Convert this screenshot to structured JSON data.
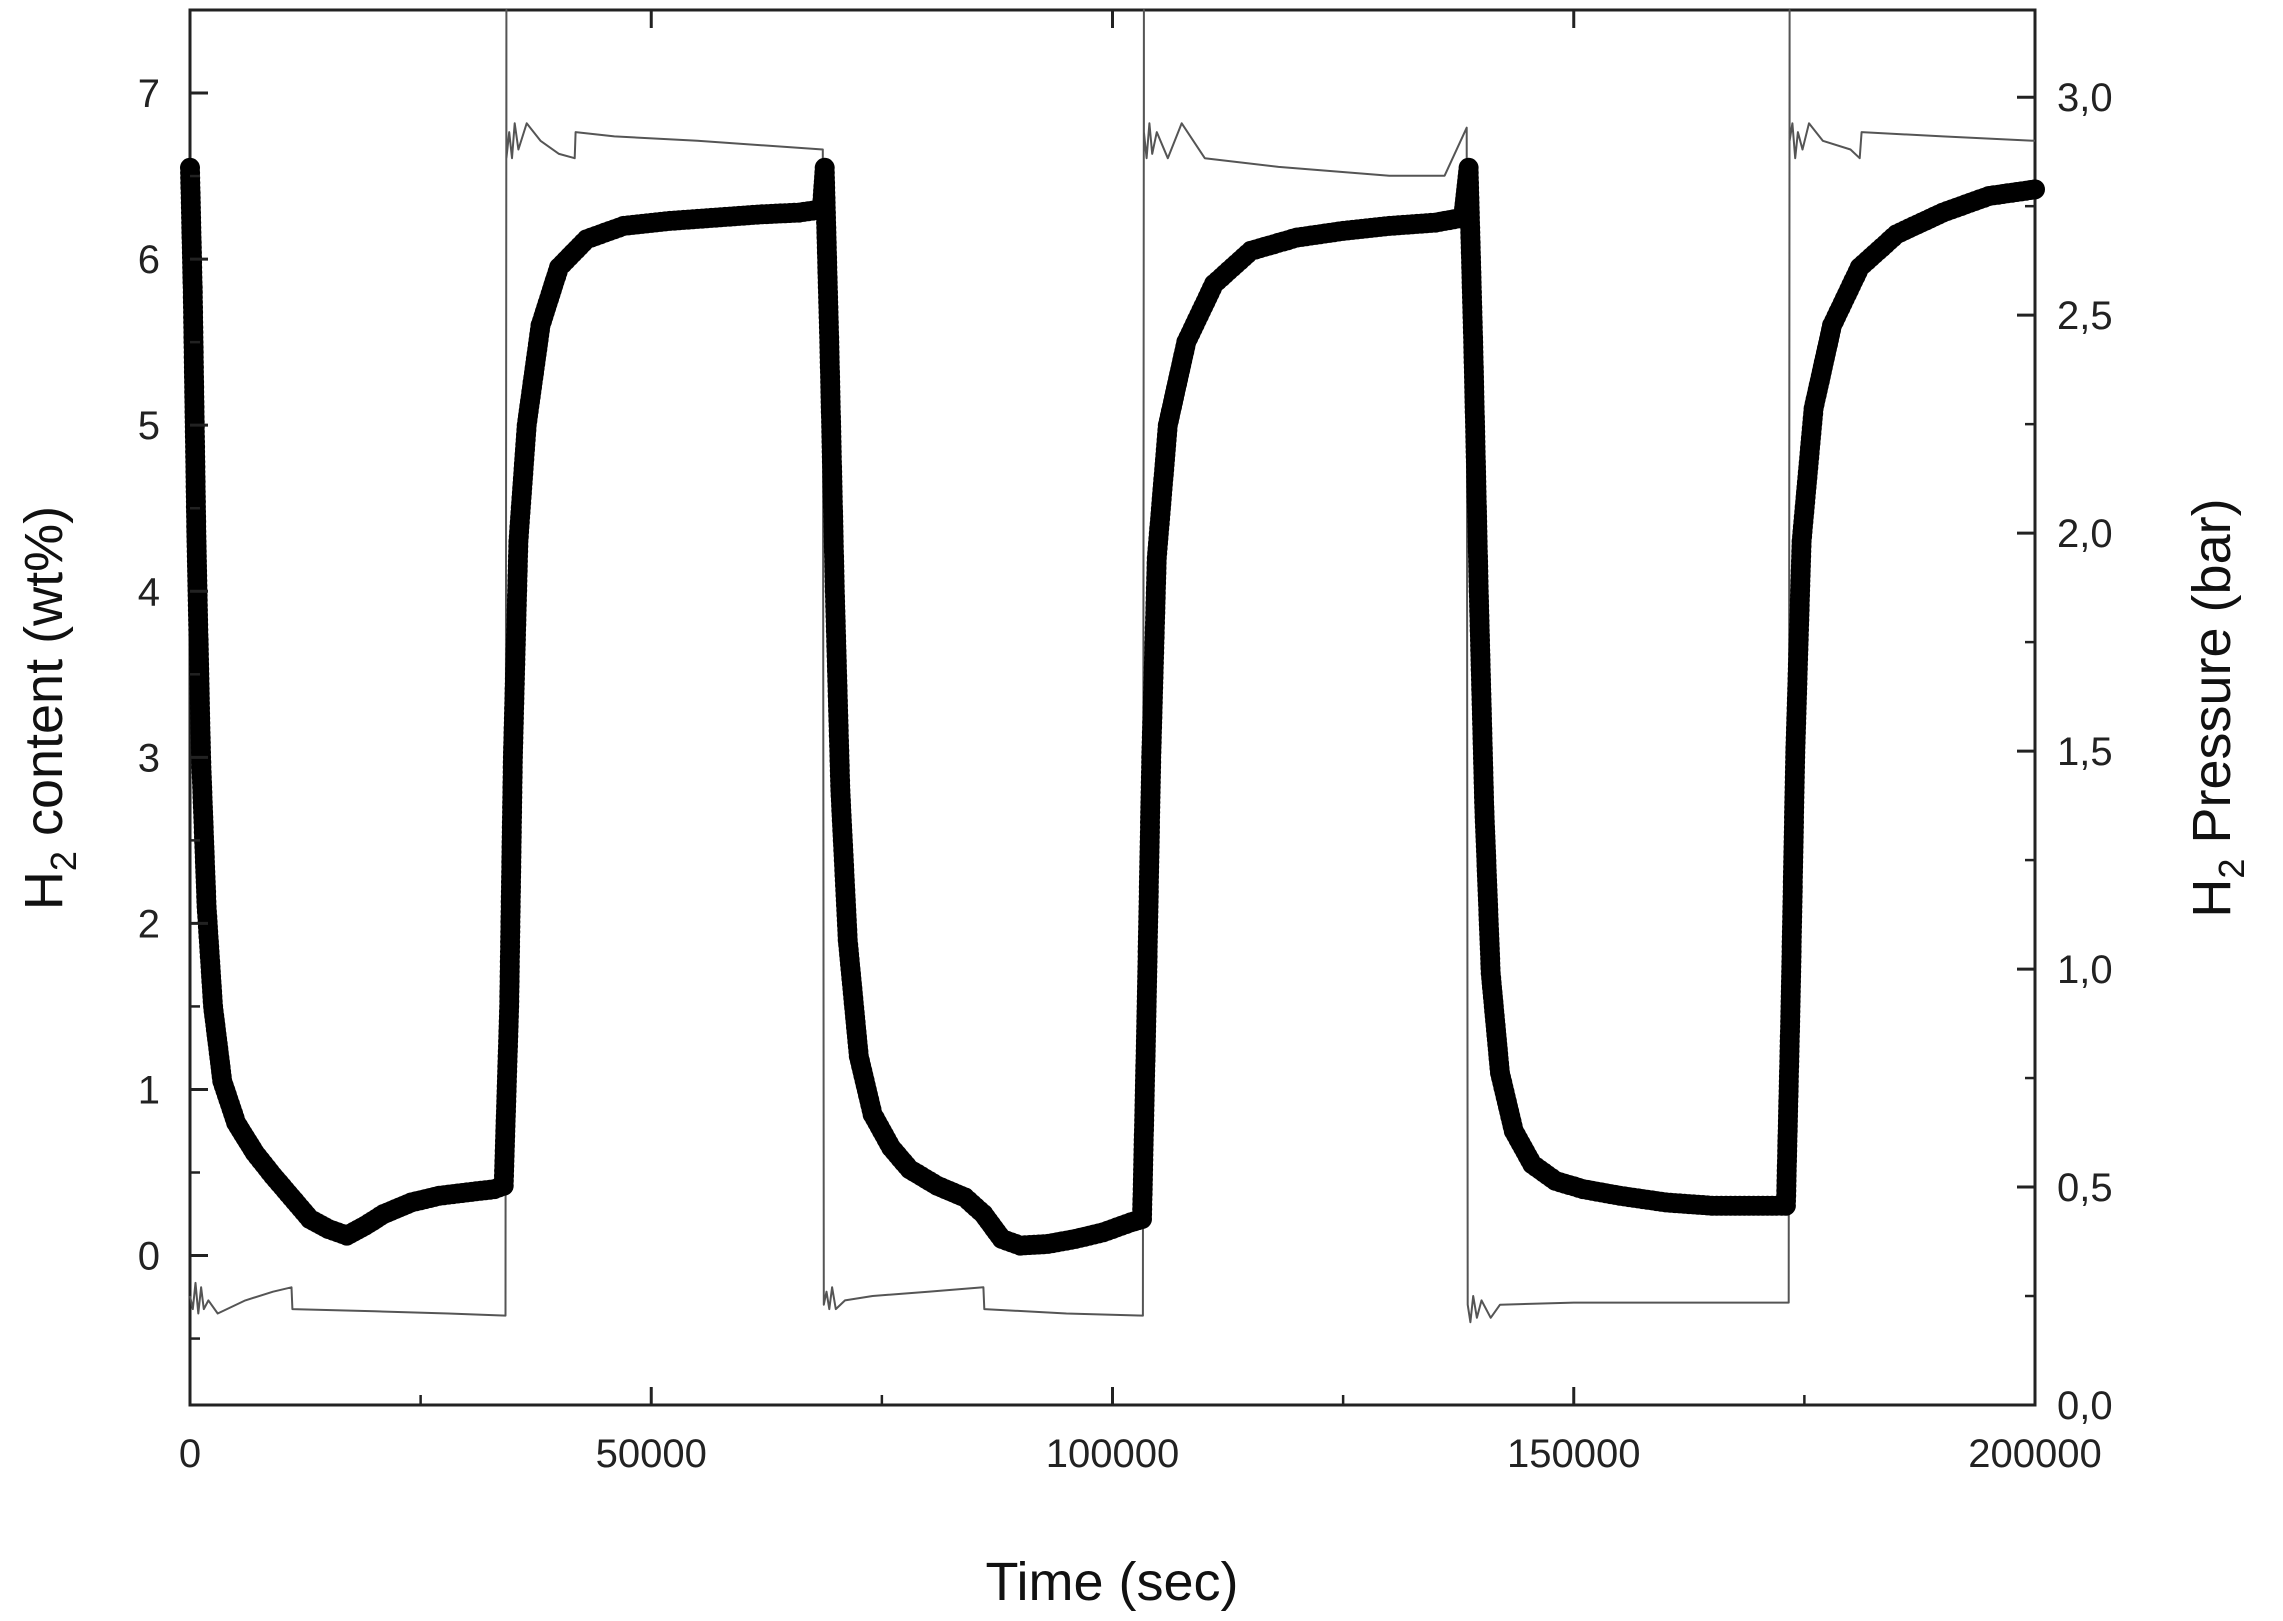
{
  "chart_data": {
    "type": "line",
    "x_axis": {
      "label": "Time (sec)",
      "range": [
        0,
        200000
      ],
      "ticks": [
        0,
        50000,
        100000,
        150000,
        200000
      ],
      "tick_labels": [
        "0",
        "50000",
        "100000",
        "150000",
        "200000"
      ]
    },
    "y_axis_left": {
      "label_main": "H",
      "label_sub": "2",
      "label_rest": " content (wt%)",
      "range": [
        -0.9,
        7.5
      ],
      "ticks": [
        0,
        1,
        2,
        3,
        4,
        5,
        6,
        7
      ],
      "tick_labels": [
        "0",
        "1",
        "2",
        "3",
        "4",
        "5",
        "6",
        "7"
      ]
    },
    "y_axis_right": {
      "label_main": "H",
      "label_sub": "2",
      "label_rest": " Pressure (bar)",
      "range": [
        0.0,
        3.2
      ],
      "ticks": [
        0.0,
        0.5,
        1.0,
        1.5,
        2.0,
        2.5,
        3.0
      ],
      "tick_labels": [
        "0,0",
        "0,5",
        "1,0",
        "1,5",
        "2,0",
        "2,5",
        "3,0"
      ]
    },
    "grid": false,
    "legend": "none",
    "series": [
      {
        "axis": "left",
        "style": "markers",
        "color": "#000000",
        "points": [
          [
            0,
            6.55
          ],
          [
            300,
            5.8
          ],
          [
            700,
            4.3
          ],
          [
            1200,
            3.0
          ],
          [
            1800,
            2.1
          ],
          [
            2500,
            1.5
          ],
          [
            3500,
            1.05
          ],
          [
            5000,
            0.8
          ],
          [
            7000,
            0.62
          ],
          [
            9000,
            0.48
          ],
          [
            11000,
            0.35
          ],
          [
            13000,
            0.22
          ],
          [
            15000,
            0.16
          ],
          [
            17000,
            0.12
          ],
          [
            19000,
            0.18
          ],
          [
            21000,
            0.25
          ],
          [
            24000,
            0.32
          ],
          [
            27000,
            0.36
          ],
          [
            30000,
            0.38
          ],
          [
            33000,
            0.4
          ],
          [
            34000,
            0.42
          ],
          [
            34600,
            1.5
          ],
          [
            35000,
            3.0
          ],
          [
            35600,
            4.3
          ],
          [
            36500,
            5.0
          ],
          [
            38000,
            5.6
          ],
          [
            40000,
            5.95
          ],
          [
            43000,
            6.12
          ],
          [
            47000,
            6.2
          ],
          [
            52000,
            6.23
          ],
          [
            57000,
            6.25
          ],
          [
            62000,
            6.27
          ],
          [
            66000,
            6.28
          ],
          [
            68500,
            6.3
          ],
          [
            68800,
            6.55
          ],
          [
            69300,
            5.5
          ],
          [
            69900,
            4.0
          ],
          [
            70500,
            2.8
          ],
          [
            71300,
            1.9
          ],
          [
            72500,
            1.2
          ],
          [
            74000,
            0.85
          ],
          [
            76000,
            0.65
          ],
          [
            78000,
            0.52
          ],
          [
            81000,
            0.42
          ],
          [
            84000,
            0.35
          ],
          [
            86000,
            0.25
          ],
          [
            88000,
            0.1
          ],
          [
            90000,
            0.06
          ],
          [
            93000,
            0.07
          ],
          [
            96000,
            0.1
          ],
          [
            99000,
            0.14
          ],
          [
            102000,
            0.2
          ],
          [
            103200,
            0.22
          ],
          [
            103700,
            1.5
          ],
          [
            104200,
            3.0
          ],
          [
            104800,
            4.2
          ],
          [
            106000,
            5.0
          ],
          [
            108000,
            5.5
          ],
          [
            111000,
            5.85
          ],
          [
            115000,
            6.05
          ],
          [
            120000,
            6.13
          ],
          [
            125000,
            6.17
          ],
          [
            130000,
            6.2
          ],
          [
            135000,
            6.22
          ],
          [
            138000,
            6.25
          ],
          [
            138600,
            6.55
          ],
          [
            139100,
            5.5
          ],
          [
            139700,
            4.0
          ],
          [
            140300,
            2.7
          ],
          [
            141000,
            1.7
          ],
          [
            142000,
            1.1
          ],
          [
            143500,
            0.75
          ],
          [
            145500,
            0.55
          ],
          [
            148000,
            0.45
          ],
          [
            151000,
            0.4
          ],
          [
            155000,
            0.36
          ],
          [
            160000,
            0.32
          ],
          [
            165000,
            0.3
          ],
          [
            170000,
            0.3
          ],
          [
            173000,
            0.3
          ],
          [
            173500,
            1.5
          ],
          [
            174000,
            3.0
          ],
          [
            174700,
            4.3
          ],
          [
            176000,
            5.1
          ],
          [
            178000,
            5.6
          ],
          [
            181000,
            5.95
          ],
          [
            185000,
            6.15
          ],
          [
            190000,
            6.28
          ],
          [
            195000,
            6.38
          ],
          [
            200000,
            6.42
          ]
        ]
      },
      {
        "axis": "right",
        "style": "thin-line",
        "color": "#555555",
        "points": [
          [
            0,
            0.25
          ],
          [
            300,
            0.22
          ],
          [
            600,
            0.28
          ],
          [
            900,
            0.21
          ],
          [
            1200,
            0.27
          ],
          [
            1500,
            0.22
          ],
          [
            2000,
            0.24
          ],
          [
            3000,
            0.21
          ],
          [
            6000,
            0.24
          ],
          [
            9000,
            0.26
          ],
          [
            11000,
            0.27
          ],
          [
            11100,
            0.22
          ],
          [
            20000,
            0.215
          ],
          [
            28000,
            0.21
          ],
          [
            34200,
            0.205
          ],
          [
            34300,
            3.2
          ],
          [
            34300,
            2.86
          ],
          [
            34600,
            2.92
          ],
          [
            34900,
            2.86
          ],
          [
            35200,
            2.94
          ],
          [
            35600,
            2.88
          ],
          [
            36500,
            2.94
          ],
          [
            38000,
            2.9
          ],
          [
            40000,
            2.87
          ],
          [
            41700,
            2.86
          ],
          [
            41800,
            2.92
          ],
          [
            46000,
            2.91
          ],
          [
            55000,
            2.9
          ],
          [
            68600,
            2.88
          ],
          [
            68700,
            0.23
          ],
          [
            69000,
            0.26
          ],
          [
            69300,
            0.22
          ],
          [
            69600,
            0.27
          ],
          [
            70000,
            0.22
          ],
          [
            71000,
            0.24
          ],
          [
            74000,
            0.25
          ],
          [
            80000,
            0.26
          ],
          [
            86000,
            0.27
          ],
          [
            86100,
            0.22
          ],
          [
            95000,
            0.21
          ],
          [
            103300,
            0.205
          ],
          [
            103400,
            3.2
          ],
          [
            103400,
            2.92
          ],
          [
            103700,
            2.86
          ],
          [
            104000,
            2.94
          ],
          [
            104300,
            2.87
          ],
          [
            104800,
            2.92
          ],
          [
            106000,
            2.86
          ],
          [
            107500,
            2.94
          ],
          [
            110000,
            2.86
          ],
          [
            118000,
            2.84
          ],
          [
            130000,
            2.82
          ],
          [
            136000,
            2.82
          ],
          [
            138400,
            2.93
          ],
          [
            138500,
            0.23
          ],
          [
            138800,
            0.19
          ],
          [
            139100,
            0.25
          ],
          [
            139500,
            0.2
          ],
          [
            140000,
            0.24
          ],
          [
            141000,
            0.2
          ],
          [
            142000,
            0.23
          ],
          [
            150000,
            0.235
          ],
          [
            165000,
            0.235
          ],
          [
            173300,
            0.235
          ],
          [
            173400,
            3.2
          ],
          [
            173400,
            2.9
          ],
          [
            173700,
            2.94
          ],
          [
            174000,
            2.86
          ],
          [
            174300,
            2.92
          ],
          [
            174800,
            2.88
          ],
          [
            175500,
            2.94
          ],
          [
            177000,
            2.9
          ],
          [
            180000,
            2.88
          ],
          [
            181000,
            2.86
          ],
          [
            181200,
            2.92
          ],
          [
            190000,
            2.91
          ],
          [
            200000,
            2.9
          ]
        ]
      }
    ]
  }
}
